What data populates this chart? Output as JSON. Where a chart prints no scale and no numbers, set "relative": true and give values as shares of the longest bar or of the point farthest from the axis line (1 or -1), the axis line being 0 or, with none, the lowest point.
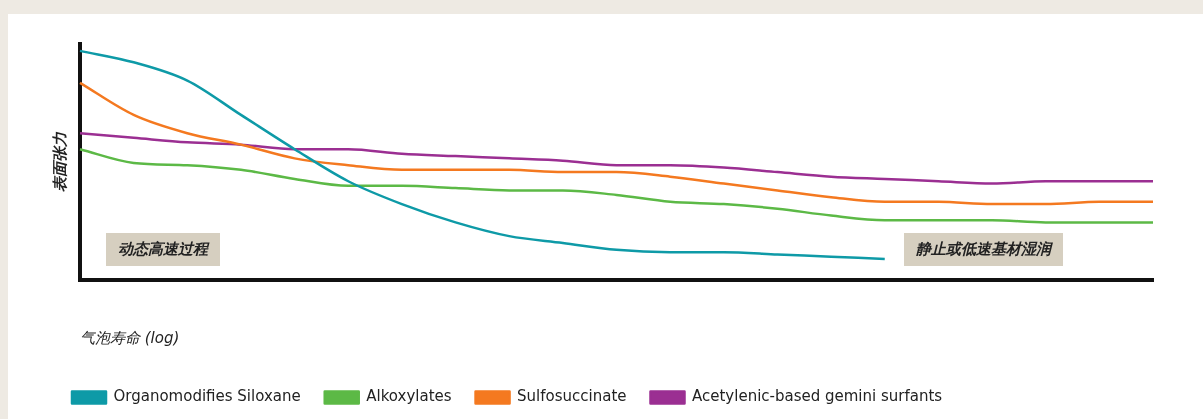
{
  "chart_data": {
    "type": "line",
    "relative": true,
    "xlabel": "气泡寿命 (log)",
    "ylabel": "表面张力",
    "categories": [
      null,
      null,
      null,
      null,
      null,
      null,
      null,
      null,
      null,
      null,
      null,
      null,
      null,
      null,
      null,
      null,
      null,
      null,
      null,
      null,
      null
    ],
    "series": [
      {
        "name": "Organomodifies Siloxane",
        "color": "#0e9aa7",
        "values": [
          1.0,
          0.95,
          0.87,
          0.72,
          0.57,
          0.43,
          0.33,
          0.25,
          0.19,
          0.16,
          0.13,
          0.12,
          0.12,
          0.11,
          0.1,
          0.09,
          null,
          null,
          null,
          null,
          null
        ]
      },
      {
        "name": "Alkoxylates",
        "color": "#5cb946",
        "values": [
          0.57,
          0.51,
          0.5,
          0.48,
          0.44,
          0.41,
          0.41,
          0.4,
          0.39,
          0.39,
          0.37,
          0.34,
          0.33,
          0.31,
          0.28,
          0.26,
          0.26,
          0.26,
          0.25,
          0.25,
          0.25
        ]
      },
      {
        "name": "Sulfosuccinate",
        "color": "#f47920",
        "values": [
          0.86,
          0.72,
          0.64,
          0.59,
          0.53,
          0.5,
          0.48,
          0.48,
          0.48,
          0.47,
          0.47,
          0.45,
          0.42,
          0.39,
          0.36,
          0.34,
          0.34,
          0.33,
          0.33,
          0.34,
          0.34
        ]
      },
      {
        "name": "Acetylenic-based gemini surfants",
        "color": "#9b2f92",
        "values": [
          0.64,
          0.62,
          0.6,
          0.59,
          0.57,
          0.57,
          0.55,
          0.54,
          0.53,
          0.52,
          0.5,
          0.5,
          0.49,
          0.47,
          0.45,
          0.44,
          0.43,
          0.42,
          0.43,
          0.43,
          0.43
        ]
      }
    ],
    "annotations": [
      "动态高速过程",
      "静止或低速基材湿润"
    ],
    "legend": "bottom",
    "grid": false,
    "marker": "none",
    "line_style": "solid"
  }
}
